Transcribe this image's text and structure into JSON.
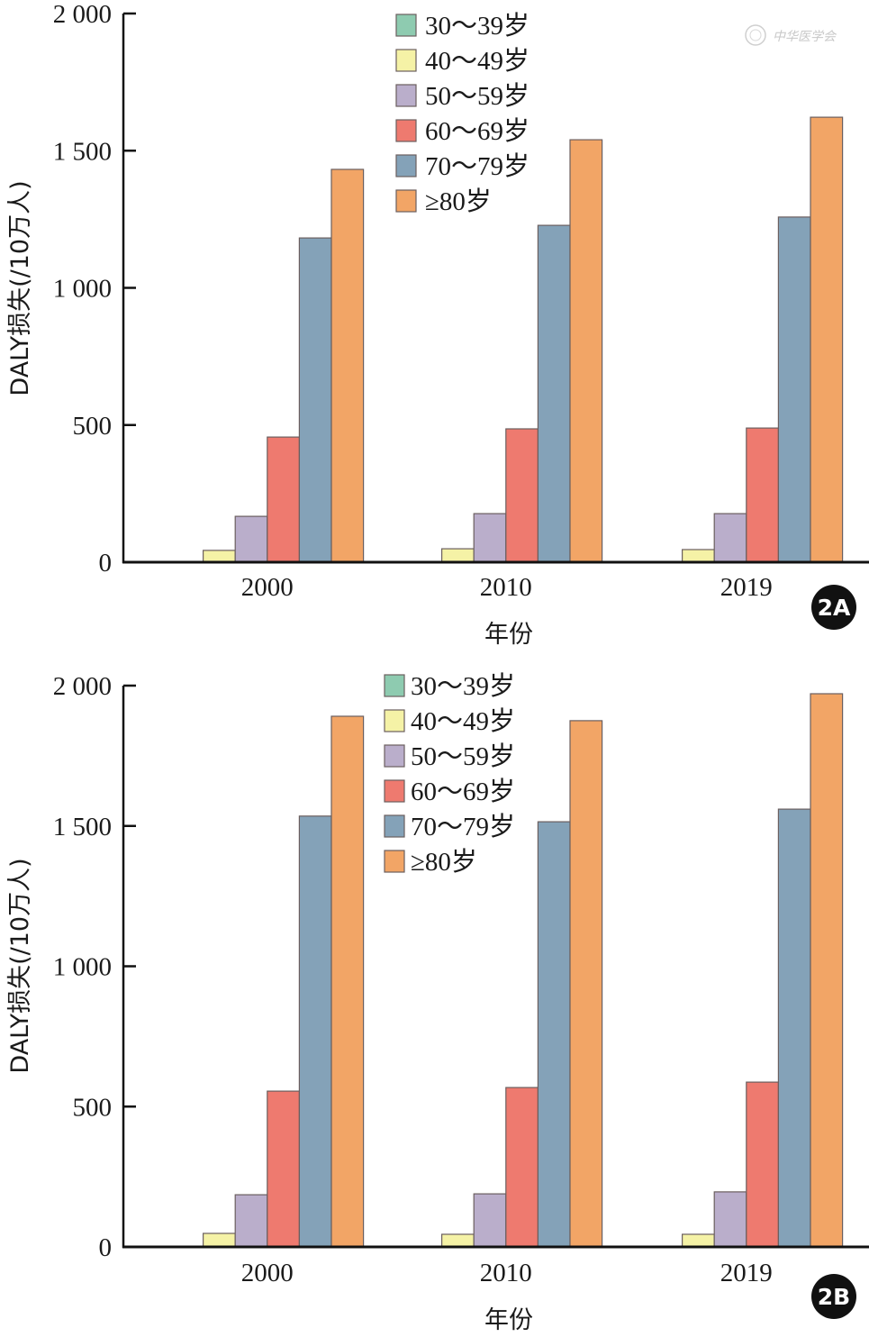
{
  "watermark": "中华医学会",
  "legend_colors": [
    "#8ecbb0",
    "#f5f2a6",
    "#baaecb",
    "#ee7a6f",
    "#84a2b8",
    "#f2a566"
  ],
  "chart_data": [
    {
      "type": "bar",
      "panel": "2A",
      "title": "",
      "xlabel": "年份",
      "ylabel": "DALY损失(/10万人)",
      "ylim": [
        0,
        2000
      ],
      "yticks": [
        0,
        500,
        1000,
        1500,
        2000
      ],
      "ytick_labels": [
        "0",
        "500",
        "1 000",
        "1 500",
        "2 000"
      ],
      "categories": [
        "2000",
        "2010",
        "2019"
      ],
      "legend_position": "top-center",
      "grid": false,
      "series": [
        {
          "name": "30～39岁",
          "values": [
            3,
            3,
            3
          ]
        },
        {
          "name": "40～49岁",
          "values": [
            43,
            49,
            46
          ]
        },
        {
          "name": "50～59岁",
          "values": [
            167,
            177,
            177
          ]
        },
        {
          "name": "60～69岁",
          "values": [
            456,
            486,
            489
          ]
        },
        {
          "name": "70～79岁",
          "values": [
            1182,
            1228,
            1258
          ]
        },
        {
          "name": "≥80岁",
          "values": [
            1432,
            1540,
            1622
          ]
        }
      ]
    },
    {
      "type": "bar",
      "panel": "2B",
      "title": "",
      "xlabel": "年份",
      "ylabel": "DALY损失(/10万人)",
      "ylim": [
        0,
        2000
      ],
      "yticks": [
        0,
        500,
        1000,
        1500,
        2000
      ],
      "ytick_labels": [
        "0",
        "500",
        "1 000",
        "1 500",
        "2 000"
      ],
      "categories": [
        "2000",
        "2010",
        "2019"
      ],
      "legend_position": "top-center",
      "grid": false,
      "series": [
        {
          "name": "30～39岁",
          "values": [
            3,
            3,
            3
          ]
        },
        {
          "name": "40～49岁",
          "values": [
            48,
            45,
            45
          ]
        },
        {
          "name": "50～59岁",
          "values": [
            186,
            189,
            196
          ]
        },
        {
          "name": "60～69岁",
          "values": [
            555,
            568,
            587
          ]
        },
        {
          "name": "70～79岁",
          "values": [
            1535,
            1515,
            1560
          ]
        },
        {
          "name": "≥80岁",
          "values": [
            1891,
            1875,
            1971
          ]
        }
      ]
    }
  ]
}
